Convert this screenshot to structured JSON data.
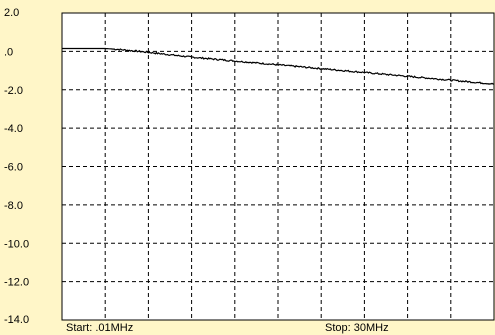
{
  "colors": {
    "background": "#fff6c8",
    "plot_area": "#ffffff",
    "grid": "#000000",
    "trace": "#000000"
  },
  "labels": {
    "start": "Start: .01MHz",
    "stop": "Stop: 30MHz"
  },
  "chart_data": {
    "type": "line",
    "title": "",
    "xlabel": "",
    "ylabel": "",
    "grid": true,
    "xlim": [
      0.01,
      30
    ],
    "ylim": [
      -14.0,
      2.0
    ],
    "y_ticks": [
      2.0,
      0.0,
      -2.0,
      -4.0,
      -6.0,
      -8.0,
      -10.0,
      -12.0,
      -14.0
    ],
    "y_tick_labels": [
      "2.0",
      ".0",
      "-2.0",
      "-4.0",
      "-6.0",
      "-8.0",
      "-10.0",
      "-12.0",
      "-14.0"
    ],
    "x_gridlines": 10,
    "series": [
      {
        "x": [
          0.01,
          3,
          4,
          6,
          9,
          12,
          15,
          18,
          21,
          24,
          27,
          30
        ],
        "y": [
          0.15,
          0.15,
          0.1,
          -0.05,
          -0.3,
          -0.5,
          -0.7,
          -0.9,
          -1.1,
          -1.3,
          -1.5,
          -1.7
        ]
      }
    ]
  }
}
